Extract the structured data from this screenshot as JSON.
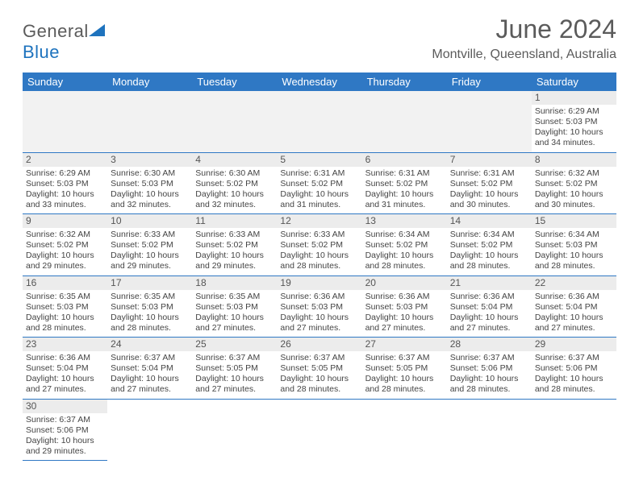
{
  "logo": {
    "text1": "General",
    "text2": "Blue"
  },
  "title": "June 2024",
  "location": "Montville, Queensland, Australia",
  "colors": {
    "header_bg": "#2f78c4",
    "header_text": "#ffffff",
    "border": "#2f78c4",
    "daynum_bg": "#ececec",
    "blank_bg": "#f2f2f2",
    "title_color": "#5b5b5b",
    "logo_blue": "#1e73be"
  },
  "weekdays": [
    "Sunday",
    "Monday",
    "Tuesday",
    "Wednesday",
    "Thursday",
    "Friday",
    "Saturday"
  ],
  "weeks": [
    [
      null,
      null,
      null,
      null,
      null,
      null,
      {
        "n": "1",
        "sr": "Sunrise: 6:29 AM",
        "ss": "Sunset: 5:03 PM",
        "d1": "Daylight: 10 hours",
        "d2": "and 34 minutes."
      }
    ],
    [
      {
        "n": "2",
        "sr": "Sunrise: 6:29 AM",
        "ss": "Sunset: 5:03 PM",
        "d1": "Daylight: 10 hours",
        "d2": "and 33 minutes."
      },
      {
        "n": "3",
        "sr": "Sunrise: 6:30 AM",
        "ss": "Sunset: 5:03 PM",
        "d1": "Daylight: 10 hours",
        "d2": "and 32 minutes."
      },
      {
        "n": "4",
        "sr": "Sunrise: 6:30 AM",
        "ss": "Sunset: 5:02 PM",
        "d1": "Daylight: 10 hours",
        "d2": "and 32 minutes."
      },
      {
        "n": "5",
        "sr": "Sunrise: 6:31 AM",
        "ss": "Sunset: 5:02 PM",
        "d1": "Daylight: 10 hours",
        "d2": "and 31 minutes."
      },
      {
        "n": "6",
        "sr": "Sunrise: 6:31 AM",
        "ss": "Sunset: 5:02 PM",
        "d1": "Daylight: 10 hours",
        "d2": "and 31 minutes."
      },
      {
        "n": "7",
        "sr": "Sunrise: 6:31 AM",
        "ss": "Sunset: 5:02 PM",
        "d1": "Daylight: 10 hours",
        "d2": "and 30 minutes."
      },
      {
        "n": "8",
        "sr": "Sunrise: 6:32 AM",
        "ss": "Sunset: 5:02 PM",
        "d1": "Daylight: 10 hours",
        "d2": "and 30 minutes."
      }
    ],
    [
      {
        "n": "9",
        "sr": "Sunrise: 6:32 AM",
        "ss": "Sunset: 5:02 PM",
        "d1": "Daylight: 10 hours",
        "d2": "and 29 minutes."
      },
      {
        "n": "10",
        "sr": "Sunrise: 6:33 AM",
        "ss": "Sunset: 5:02 PM",
        "d1": "Daylight: 10 hours",
        "d2": "and 29 minutes."
      },
      {
        "n": "11",
        "sr": "Sunrise: 6:33 AM",
        "ss": "Sunset: 5:02 PM",
        "d1": "Daylight: 10 hours",
        "d2": "and 29 minutes."
      },
      {
        "n": "12",
        "sr": "Sunrise: 6:33 AM",
        "ss": "Sunset: 5:02 PM",
        "d1": "Daylight: 10 hours",
        "d2": "and 28 minutes."
      },
      {
        "n": "13",
        "sr": "Sunrise: 6:34 AM",
        "ss": "Sunset: 5:02 PM",
        "d1": "Daylight: 10 hours",
        "d2": "and 28 minutes."
      },
      {
        "n": "14",
        "sr": "Sunrise: 6:34 AM",
        "ss": "Sunset: 5:02 PM",
        "d1": "Daylight: 10 hours",
        "d2": "and 28 minutes."
      },
      {
        "n": "15",
        "sr": "Sunrise: 6:34 AM",
        "ss": "Sunset: 5:03 PM",
        "d1": "Daylight: 10 hours",
        "d2": "and 28 minutes."
      }
    ],
    [
      {
        "n": "16",
        "sr": "Sunrise: 6:35 AM",
        "ss": "Sunset: 5:03 PM",
        "d1": "Daylight: 10 hours",
        "d2": "and 28 minutes."
      },
      {
        "n": "17",
        "sr": "Sunrise: 6:35 AM",
        "ss": "Sunset: 5:03 PM",
        "d1": "Daylight: 10 hours",
        "d2": "and 28 minutes."
      },
      {
        "n": "18",
        "sr": "Sunrise: 6:35 AM",
        "ss": "Sunset: 5:03 PM",
        "d1": "Daylight: 10 hours",
        "d2": "and 27 minutes."
      },
      {
        "n": "19",
        "sr": "Sunrise: 6:36 AM",
        "ss": "Sunset: 5:03 PM",
        "d1": "Daylight: 10 hours",
        "d2": "and 27 minutes."
      },
      {
        "n": "20",
        "sr": "Sunrise: 6:36 AM",
        "ss": "Sunset: 5:03 PM",
        "d1": "Daylight: 10 hours",
        "d2": "and 27 minutes."
      },
      {
        "n": "21",
        "sr": "Sunrise: 6:36 AM",
        "ss": "Sunset: 5:04 PM",
        "d1": "Daylight: 10 hours",
        "d2": "and 27 minutes."
      },
      {
        "n": "22",
        "sr": "Sunrise: 6:36 AM",
        "ss": "Sunset: 5:04 PM",
        "d1": "Daylight: 10 hours",
        "d2": "and 27 minutes."
      }
    ],
    [
      {
        "n": "23",
        "sr": "Sunrise: 6:36 AM",
        "ss": "Sunset: 5:04 PM",
        "d1": "Daylight: 10 hours",
        "d2": "and 27 minutes."
      },
      {
        "n": "24",
        "sr": "Sunrise: 6:37 AM",
        "ss": "Sunset: 5:04 PM",
        "d1": "Daylight: 10 hours",
        "d2": "and 27 minutes."
      },
      {
        "n": "25",
        "sr": "Sunrise: 6:37 AM",
        "ss": "Sunset: 5:05 PM",
        "d1": "Daylight: 10 hours",
        "d2": "and 27 minutes."
      },
      {
        "n": "26",
        "sr": "Sunrise: 6:37 AM",
        "ss": "Sunset: 5:05 PM",
        "d1": "Daylight: 10 hours",
        "d2": "and 28 minutes."
      },
      {
        "n": "27",
        "sr": "Sunrise: 6:37 AM",
        "ss": "Sunset: 5:05 PM",
        "d1": "Daylight: 10 hours",
        "d2": "and 28 minutes."
      },
      {
        "n": "28",
        "sr": "Sunrise: 6:37 AM",
        "ss": "Sunset: 5:06 PM",
        "d1": "Daylight: 10 hours",
        "d2": "and 28 minutes."
      },
      {
        "n": "29",
        "sr": "Sunrise: 6:37 AM",
        "ss": "Sunset: 5:06 PM",
        "d1": "Daylight: 10 hours",
        "d2": "and 28 minutes."
      }
    ],
    [
      {
        "n": "30",
        "sr": "Sunrise: 6:37 AM",
        "ss": "Sunset: 5:06 PM",
        "d1": "Daylight: 10 hours",
        "d2": "and 29 minutes."
      },
      null,
      null,
      null,
      null,
      null,
      null
    ]
  ]
}
